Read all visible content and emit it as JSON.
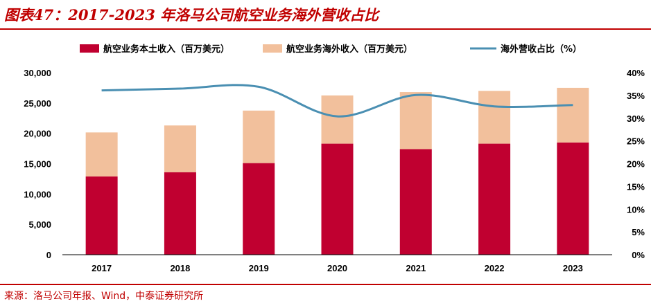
{
  "header": {
    "title": "图表47：2017-2023 年洛马公司航空业务海外营收占比"
  },
  "footer": {
    "source": "来源：洛马公司年报、Wind，中泰证券研究所"
  },
  "colors": {
    "accent": "#c00000",
    "domestic": "#c00030",
    "overseas": "#f2c09c",
    "ratio_line": "#4a8fb2"
  },
  "chart_data": {
    "type": "bar",
    "stacked": true,
    "categories": [
      "2017",
      "2018",
      "2019",
      "2020",
      "2021",
      "2022",
      "2023"
    ],
    "series": [
      {
        "name": "航空业务本土收入（百万美元）",
        "type": "bar",
        "axis": "left",
        "values": [
          12900,
          13600,
          15100,
          18300,
          17400,
          18300,
          18500
        ]
      },
      {
        "name": "航空业务海外收入（百万美元）",
        "type": "bar",
        "axis": "left",
        "values": [
          7250,
          7700,
          8650,
          7950,
          9400,
          8700,
          9000
        ]
      },
      {
        "name": "海外营收占比（%）",
        "type": "line",
        "axis": "right",
        "values": [
          36.1,
          36.5,
          36.9,
          30.4,
          35.1,
          32.6,
          32.9
        ]
      }
    ],
    "left_axis": {
      "min": 0,
      "max": 30000,
      "ticks": [
        "0",
        "5,000",
        "10,000",
        "15,000",
        "20,000",
        "25,000",
        "30,000"
      ]
    },
    "right_axis": {
      "min": 0,
      "max": 40,
      "ticks": [
        "0%",
        "5%",
        "10%",
        "15%",
        "20%",
        "25%",
        "30%",
        "35%",
        "40%"
      ]
    },
    "legend_position": "top",
    "grid": false
  }
}
